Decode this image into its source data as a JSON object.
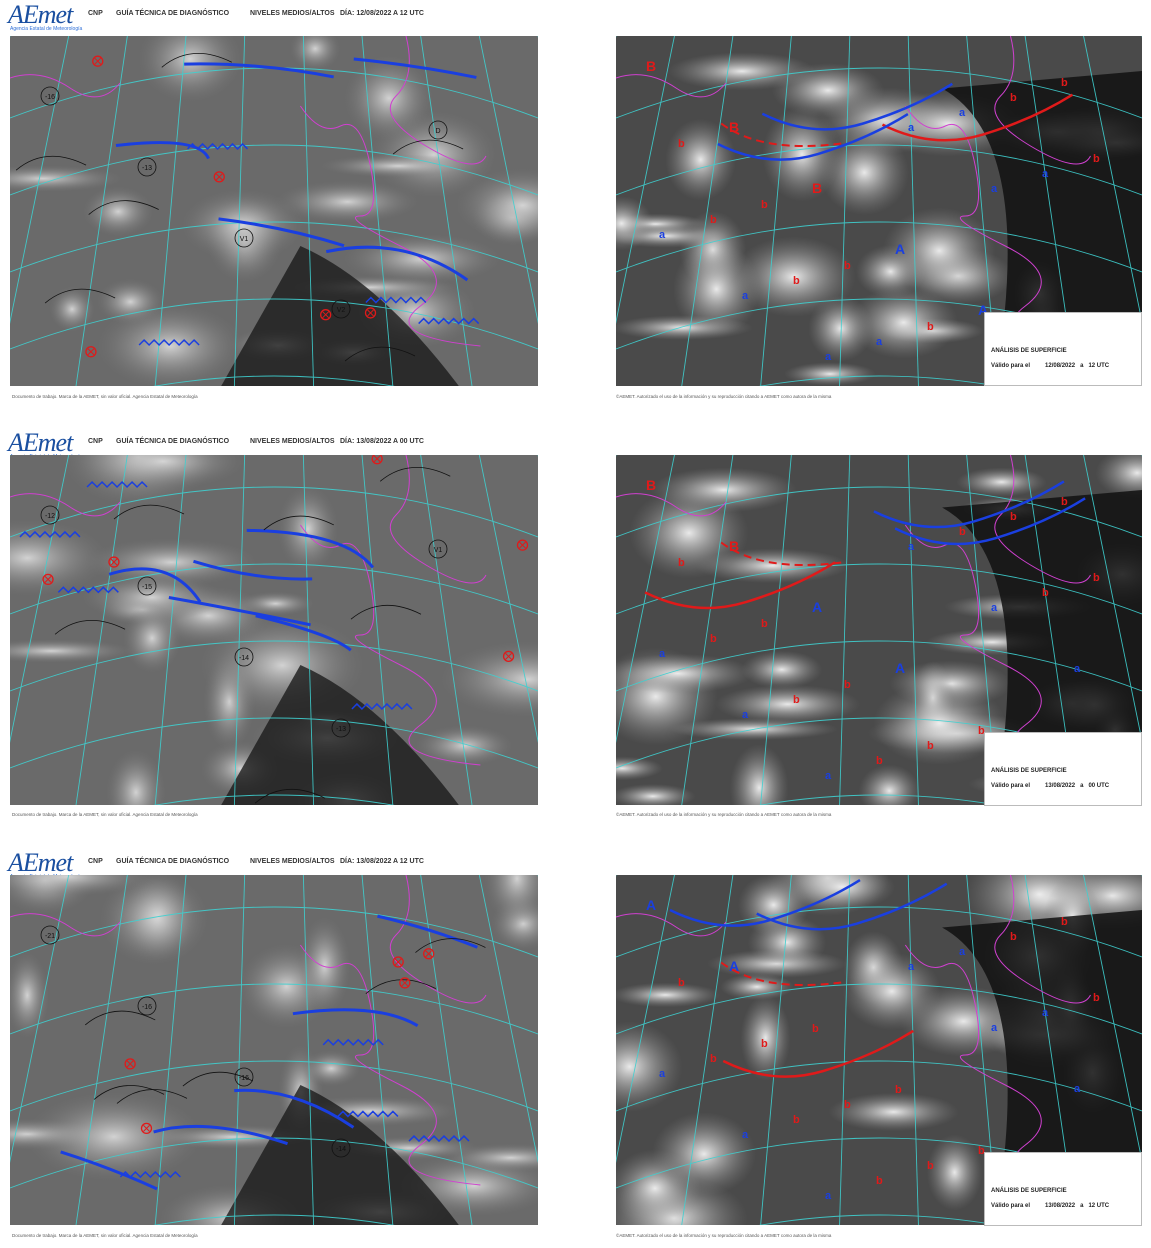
{
  "logo": {
    "text": "AEmet",
    "subtitle": "Agencia Estatal de Meteorología"
  },
  "header": {
    "cnp": "CNP",
    "guide": "GUÍA TÉCNICA DE DIAGNÓSTICO",
    "levels": "NIVELES MEDIOS/ALTOS"
  },
  "rows": [
    {
      "date": "DÍA: 12/08/2022  A  12 UTC",
      "surface": {
        "date": "12/08/2022",
        "time": "12 UTC"
      }
    },
    {
      "date": "DÍA: 13/08/2022  A  00 UTC",
      "surface": {
        "date": "13/08/2022",
        "time": "00 UTC"
      }
    },
    {
      "date": "DÍA: 13/08/2022  A  12 UTC",
      "surface": {
        "date": "13/08/2022",
        "time": "12 UTC"
      }
    }
  ],
  "surface_legend": {
    "title": "ANÁLISIS DE SUPERFICIE",
    "valid": "Válido para el",
    "a": "a"
  },
  "footer_left": "Documento de trabajo. Marca de la AEMET, sin valor oficial. Agencia Estatal de Meteorología",
  "footer_right": "©AEMET. Autorizado el uso de la información y su reproducción citando a AEMET como autora de la misma",
  "map_labels": {
    "upper_left": [
      {
        "text": "-16"
      },
      {
        "text": "-13"
      },
      {
        "text": "V1"
      },
      {
        "text": "V2"
      },
      {
        "text": "D"
      }
    ],
    "upper_mid": [
      {
        "text": "-12"
      },
      {
        "text": "-15"
      },
      {
        "text": "-14"
      },
      {
        "text": "-13"
      },
      {
        "text": "V1"
      }
    ],
    "upper_bottom": [
      {
        "text": "-21"
      },
      {
        "text": "-16"
      },
      {
        "text": "-16"
      },
      {
        "text": "-14"
      }
    ],
    "surface_top": [
      "B",
      "B",
      "B",
      "A",
      "A",
      "b",
      "b",
      "b",
      "b",
      "b",
      "b",
      "b",
      "b",
      "b",
      "a",
      "a",
      "a",
      "a",
      "a",
      "a",
      "a",
      "a"
    ],
    "surface_mid": [
      "B",
      "B",
      "A",
      "A",
      "b",
      "b",
      "b",
      "b",
      "b",
      "b",
      "b",
      "b",
      "b",
      "b",
      "b",
      "b",
      "b",
      "a",
      "a",
      "a",
      "a",
      "a",
      "a"
    ],
    "surface_bottom": [
      "A",
      "A",
      "b",
      "b",
      "b",
      "b",
      "b",
      "b",
      "b",
      "b",
      "b",
      "b",
      "b",
      "b",
      "b",
      "a",
      "a",
      "a",
      "a",
      "a",
      "a",
      "a",
      "a"
    ]
  },
  "colors": {
    "front_cold": "#1a3fe0",
    "front_warm": "#e01a1a",
    "grid": "#3fd0d0",
    "coast": "#d040d0",
    "low_mark": "#e01a1a",
    "high_mark": "#1a3fe0"
  }
}
